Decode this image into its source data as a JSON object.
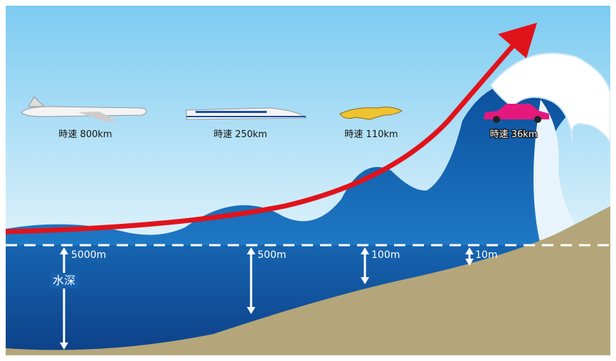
{
  "speeds": [
    "時速 800km",
    "時速 250km",
    "時速 110km",
    "時速 36km"
  ],
  "depths": [
    "5000m",
    "500m",
    "100m",
    "10m"
  ],
  "depth_label": "水深"
}
